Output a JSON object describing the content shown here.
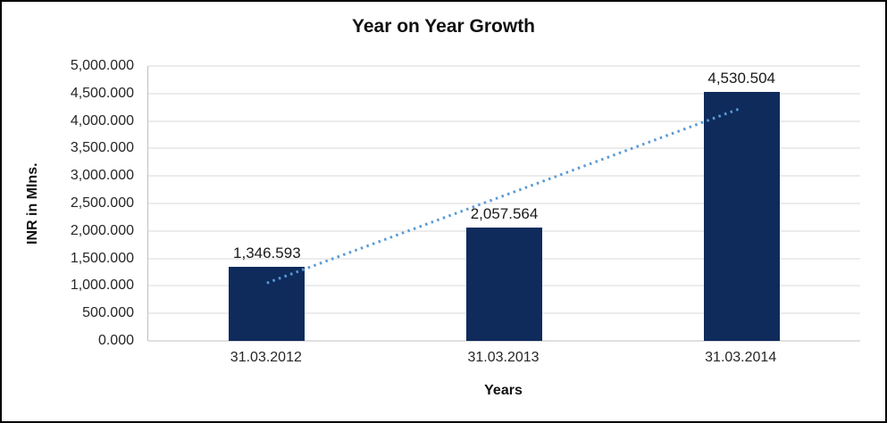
{
  "chart_data": {
    "type": "bar",
    "title": "Year on Year Growth",
    "xlabel": "Years",
    "ylabel": "INR in Mlns.",
    "categories": [
      "31.03.2012",
      "31.03.2013",
      "31.03.2014"
    ],
    "values": [
      1346.593,
      2057.564,
      4530.504
    ],
    "data_labels": [
      "1,346.593",
      "2,057.564",
      "4,530.504"
    ],
    "ylim": [
      0,
      5000
    ],
    "ytick_step": 500,
    "ytick_labels": [
      "0.000",
      "500.000",
      "1,000.000",
      "1,500.000",
      "2,000.000",
      "2,500.000",
      "3,000.000",
      "3,500.000",
      "4,000.000",
      "4,500.000",
      "5,000.000"
    ],
    "grid": true,
    "legend": "none",
    "bar_color": "#0f2b5c",
    "gridline_color": "#d9d9d9",
    "axis_line_color": "#bfbfbf",
    "trendline": {
      "style": "dotted",
      "color": "#5b9bd5",
      "points_y": [
        1052.93,
        2644.89,
        4236.84
      ]
    }
  }
}
